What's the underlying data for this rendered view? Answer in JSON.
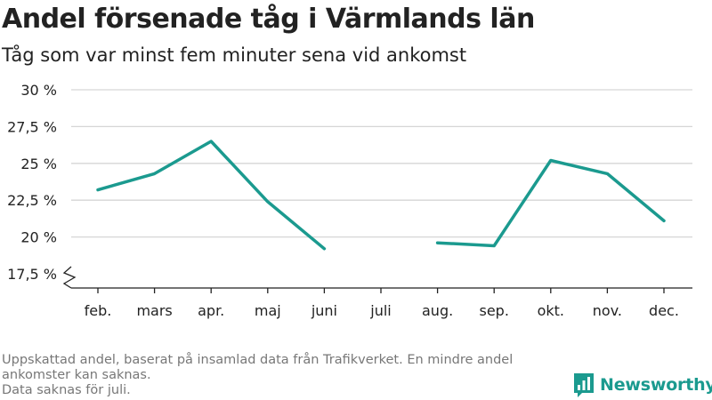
{
  "chart_data": {
    "type": "line",
    "title": "Andel försenade tåg i Värmlands län",
    "subtitle": "Tåg som var minst fem minuter sena vid ankomst",
    "categories": [
      "feb.",
      "mars",
      "apr.",
      "maj",
      "juni",
      "juli",
      "aug.",
      "sep.",
      "okt.",
      "nov.",
      "dec."
    ],
    "series": [
      {
        "values": [
          23.2,
          24.3,
          26.5,
          22.4,
          19.2,
          null,
          19.6,
          19.4,
          25.2,
          24.3,
          21.1
        ],
        "color": "#1b9a8f"
      }
    ],
    "y_ticks": [
      17.5,
      20,
      22.5,
      25,
      27.5,
      30
    ],
    "y_tick_labels": [
      "17,5 %",
      "20 %",
      "22,5 %",
      "25 %",
      "27,5 %",
      "30 %"
    ],
    "ylim": [
      17.5,
      30
    ],
    "y_axis_break": true,
    "grid": true,
    "legend": "none"
  },
  "footnote": {
    "line1": "Uppskattad andel, baserat på insamlad data från Trafikverket. En mindre andel",
    "line2": "ankomster kan saknas.",
    "line3": "Data saknas för juli."
  },
  "logo": {
    "text": "Newsworthy",
    "icon": "bar-chart-bubble-icon",
    "color": "#1b9a8f"
  }
}
